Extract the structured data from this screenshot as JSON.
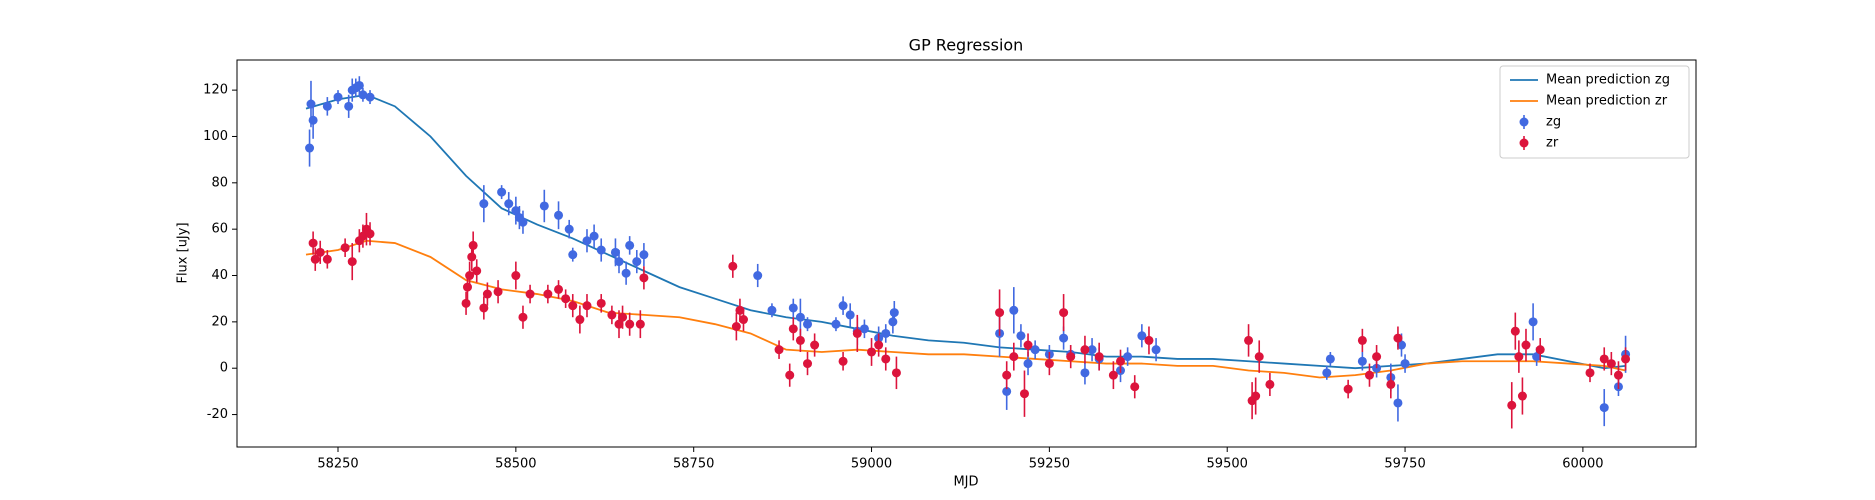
{
  "chart_data": {
    "type": "scatter",
    "title": "GP Regression",
    "x_label": "MJD",
    "y_label": "Flux [uJy]",
    "xlim": [
      58108,
      60159
    ],
    "ylim": [
      -34,
      133
    ],
    "xticks": [
      58250,
      58500,
      58750,
      59000,
      59250,
      59500,
      59750,
      60000
    ],
    "yticks": [
      -20,
      0,
      20,
      40,
      60,
      80,
      100,
      120
    ],
    "legend": "upper right",
    "series": [
      {
        "name": "Mean prediction zg",
        "mode": "line",
        "color": "#1f77b4",
        "x": [
          58205,
          58250,
          58290,
          58330,
          58380,
          58430,
          58480,
          58530,
          58580,
          58630,
          58680,
          58730,
          58780,
          58830,
          58880,
          58930,
          58980,
          59030,
          59080,
          59130,
          59180,
          59230,
          59280,
          59330,
          59380,
          59430,
          59480,
          59530,
          59580,
          59630,
          59680,
          59730,
          59780,
          59830,
          59880,
          59930,
          59980,
          60030,
          60060
        ],
        "values": [
          112,
          116,
          118,
          113,
          100,
          83,
          69,
          62,
          56,
          49,
          42,
          35,
          30,
          25,
          22,
          20,
          17,
          14,
          12,
          11,
          9,
          8,
          7,
          5,
          5,
          4,
          4,
          3,
          2,
          1,
          0,
          1,
          2,
          4,
          6,
          6,
          3,
          0,
          1
        ]
      },
      {
        "name": "Mean prediction zr",
        "mode": "line",
        "color": "#ff7f0e",
        "x": [
          58205,
          58250,
          58290,
          58330,
          58380,
          58430,
          58480,
          58530,
          58580,
          58630,
          58680,
          58730,
          58780,
          58830,
          58880,
          58930,
          58980,
          59030,
          59080,
          59130,
          59180,
          59230,
          59280,
          59330,
          59380,
          59430,
          59480,
          59530,
          59580,
          59630,
          59680,
          59730,
          59780,
          59830,
          59880,
          59930,
          59980,
          60030,
          60060
        ],
        "values": [
          49,
          51,
          55,
          54,
          48,
          38,
          34,
          32,
          29,
          24,
          23,
          22,
          19,
          15,
          8,
          7,
          8,
          7,
          6,
          6,
          5,
          4,
          3,
          2,
          2,
          1,
          1,
          -1,
          -2,
          -4,
          -3,
          -1,
          2,
          3,
          3,
          3,
          2,
          1,
          -1
        ]
      },
      {
        "name": "zg",
        "mode": "errorbar",
        "color": "#4169e1",
        "x": [
          58210,
          58212,
          58215,
          58235,
          58250,
          58265,
          58270,
          58275,
          58280,
          58285,
          58295,
          58455,
          58480,
          58490,
          58500,
          58505,
          58510,
          58540,
          58560,
          58575,
          58580,
          58600,
          58610,
          58620,
          58640,
          58645,
          58655,
          58660,
          58670,
          58680,
          58840,
          58860,
          58890,
          58900,
          58910,
          58950,
          58960,
          58970,
          58980,
          58990,
          59010,
          59020,
          59030,
          59032,
          59180,
          59190,
          59200,
          59210,
          59220,
          59230,
          59250,
          59270,
          59280,
          59300,
          59310,
          59320,
          59350,
          59360,
          59380,
          59400,
          59640,
          59645,
          59690,
          59710,
          59730,
          59740,
          59745,
          59750,
          59930,
          59935,
          60030,
          60050,
          60060
        ],
        "values": [
          95,
          114,
          107,
          113,
          117,
          113,
          120,
          121,
          122,
          118,
          117,
          71,
          76,
          71,
          68,
          65,
          63,
          70,
          66,
          60,
          49,
          55,
          57,
          51,
          50,
          46,
          41,
          53,
          46,
          49,
          40,
          25,
          26,
          22,
          19,
          19,
          27,
          23,
          16,
          17,
          13,
          15,
          20,
          24,
          15,
          -10,
          25,
          14,
          2,
          8,
          6,
          13,
          6,
          -2,
          8,
          4,
          -1,
          5,
          14,
          8,
          -2,
          4,
          3,
          0,
          -4,
          -15,
          10,
          2,
          20,
          5,
          -17,
          -8,
          6
        ],
        "errors": [
          8,
          10,
          8,
          4,
          3,
          5,
          5,
          4,
          4,
          3,
          3,
          8,
          3,
          5,
          6,
          5,
          5,
          7,
          6,
          4,
          3,
          5,
          5,
          5,
          6,
          5,
          5,
          4,
          5,
          5,
          5,
          3,
          4,
          8,
          3,
          3,
          4,
          5,
          6,
          4,
          5,
          4,
          5,
          5,
          10,
          8,
          10,
          5,
          5,
          4,
          4,
          5,
          4,
          5,
          5,
          5,
          5,
          4,
          5,
          5,
          3,
          3,
          4,
          4,
          6,
          8,
          5,
          4,
          8,
          4,
          8,
          4,
          8
        ]
      },
      {
        "name": "zr",
        "mode": "errorbar",
        "color": "#dc143c",
        "x": [
          58215,
          58218,
          58225,
          58235,
          58260,
          58270,
          58280,
          58285,
          58290,
          58295,
          58430,
          58432,
          58435,
          58438,
          58440,
          58445,
          58455,
          58460,
          58475,
          58500,
          58510,
          58520,
          58545,
          58560,
          58570,
          58580,
          58590,
          58600,
          58620,
          58635,
          58645,
          58650,
          58660,
          58675,
          58680,
          58805,
          58810,
          58815,
          58820,
          58870,
          58885,
          58890,
          58900,
          58910,
          58920,
          58960,
          58980,
          59000,
          59010,
          59020,
          59035,
          59180,
          59190,
          59200,
          59215,
          59220,
          59250,
          59270,
          59280,
          59300,
          59320,
          59340,
          59350,
          59370,
          59390,
          59530,
          59535,
          59540,
          59545,
          59560,
          59670,
          59690,
          59700,
          59710,
          59730,
          59740,
          59900,
          59905,
          59910,
          59915,
          59920,
          59940,
          60010,
          60030,
          60040,
          60050,
          60060
        ],
        "values": [
          54,
          47,
          50,
          47,
          52,
          46,
          55,
          57,
          60,
          58,
          28,
          35,
          40,
          48,
          53,
          42,
          26,
          32,
          33,
          40,
          22,
          32,
          32,
          34,
          30,
          27,
          21,
          27,
          28,
          23,
          19,
          22,
          19,
          19,
          39,
          44,
          18,
          25,
          21,
          8,
          -3,
          17,
          12,
          2,
          10,
          3,
          15,
          7,
          10,
          4,
          -2,
          24,
          -3,
          5,
          -11,
          10,
          2,
          24,
          5,
          8,
          5,
          -3,
          3,
          -8,
          12,
          12,
          -14,
          -12,
          5,
          -7,
          -9,
          12,
          -3,
          5,
          -7,
          13,
          -16,
          16,
          5,
          -12,
          10,
          8,
          -2,
          4,
          2,
          -3,
          4
        ],
        "errors": [
          5,
          5,
          5,
          4,
          4,
          8,
          5,
          5,
          7,
          5,
          5,
          6,
          6,
          6,
          6,
          5,
          5,
          5,
          5,
          6,
          5,
          4,
          4,
          4,
          4,
          5,
          6,
          5,
          4,
          4,
          6,
          5,
          5,
          6,
          5,
          5,
          6,
          5,
          5,
          4,
          5,
          5,
          5,
          5,
          5,
          4,
          8,
          6,
          5,
          5,
          7,
          10,
          6,
          6,
          10,
          5,
          5,
          8,
          5,
          6,
          6,
          6,
          5,
          5,
          6,
          7,
          8,
          8,
          7,
          5,
          4,
          5,
          5,
          5,
          6,
          5,
          10,
          8,
          7,
          8,
          7,
          5,
          4,
          5,
          5,
          6,
          5
        ]
      }
    ]
  }
}
